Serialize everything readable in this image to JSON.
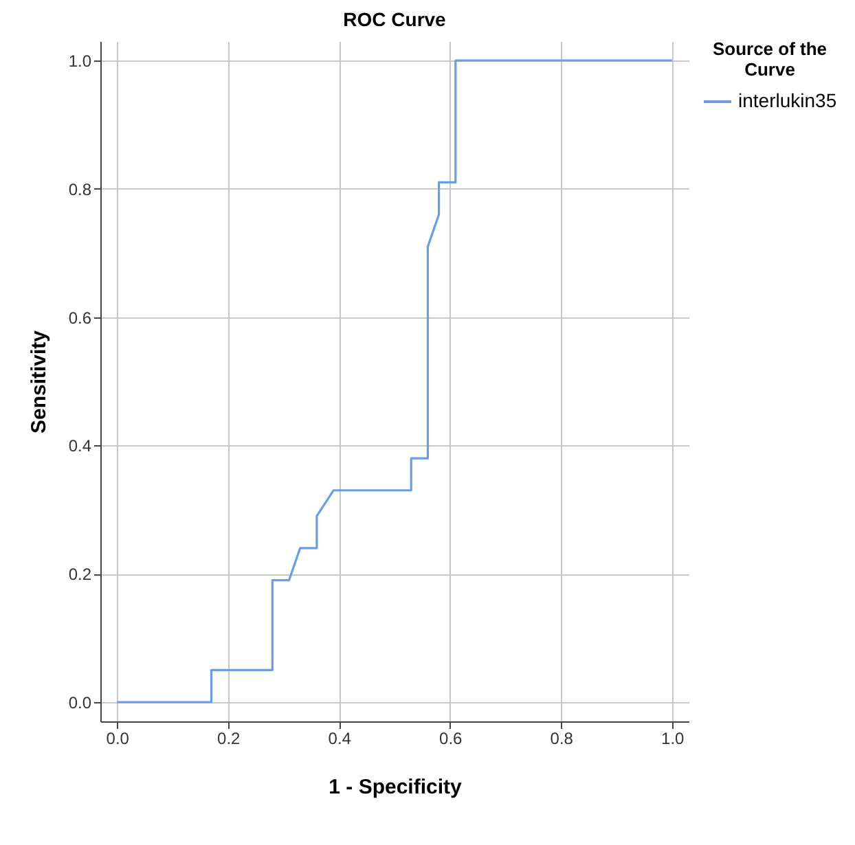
{
  "chart_data": {
    "type": "line",
    "title": "ROC Curve",
    "xlabel": "1 - Specificity",
    "ylabel": "Sensitivity",
    "legend_title": "Source of the Curve",
    "x": [
      0,
      0.17,
      0.17,
      0.28,
      0.28,
      0.31,
      0.33,
      0.36,
      0.36,
      0.39,
      0.53,
      0.53,
      0.56,
      0.56,
      0.58,
      0.58,
      0.61,
      0.61,
      1
    ],
    "series": [
      {
        "name": "interlukin35",
        "color": "#6a9ee0",
        "values": [
          0,
          0,
          0.05,
          0.05,
          0.19,
          0.19,
          0.24,
          0.24,
          0.29,
          0.33,
          0.33,
          0.38,
          0.38,
          0.71,
          0.76,
          0.81,
          0.81,
          1,
          1
        ]
      }
    ],
    "xlim": [
      -0.03,
      1.03
    ],
    "ylim": [
      -0.03,
      1.03
    ],
    "xticks": [
      {
        "value": 0,
        "label": "0.0"
      },
      0.2,
      0.4,
      0.6,
      0.8,
      {
        "value": 1,
        "label": "1.0"
      }
    ],
    "yticks": [
      {
        "value": 0,
        "label": "0.0"
      },
      0.2,
      0.4,
      0.6,
      0.8,
      {
        "value": 1,
        "label": "1.0"
      }
    ],
    "grid": true,
    "legend": "top right",
    "line_style": "solid"
  }
}
